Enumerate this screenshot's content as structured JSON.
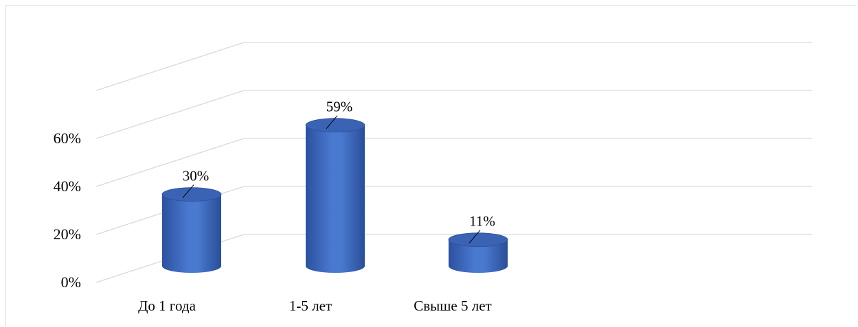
{
  "chart_data": {
    "type": "bar",
    "categories": [
      "До 1 года",
      "1-5 лет",
      "Свыше 5 лет"
    ],
    "values": [
      30,
      59,
      11
    ],
    "data_labels": [
      "30%",
      "59%",
      "11%"
    ],
    "title": "",
    "xlabel": "",
    "ylabel": "",
    "ylim": [
      0,
      60
    ],
    "yticks": [
      0,
      20,
      40,
      60
    ],
    "ytick_labels": [
      "0%",
      "20%",
      "40%",
      "60%"
    ],
    "grid": true,
    "style": "3d-cylinder",
    "colors": {
      "bar": "#4472c4",
      "bar_dark": "#2f56a0",
      "bar_top": "#3a63b4",
      "grid": "#d9d9d9",
      "text": "#000000"
    }
  }
}
